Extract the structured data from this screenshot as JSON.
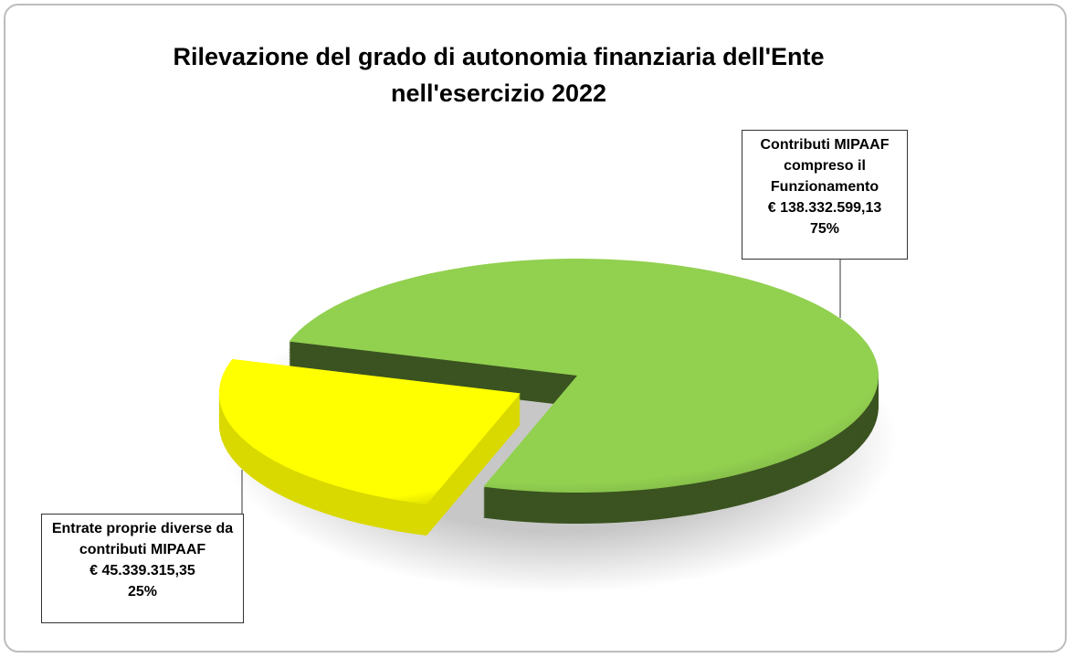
{
  "chart_data": {
    "type": "pie",
    "title": "Rilevazione del grado di autonomia finanziaria dell'Ente nell'esercizio 2022",
    "categories": [
      "Contributi MIPAAF compreso il Funzionamento",
      "Entrate proprie diverse da contributi MIPAAF"
    ],
    "values": [
      138332599.13,
      45339315.35
    ],
    "value_labels": [
      "€ 138.332.599,13",
      "€ 45.339.315,35"
    ],
    "percent_labels": [
      "75%",
      "25%"
    ],
    "colors": [
      "#92d050",
      "#ffff00"
    ]
  }
}
